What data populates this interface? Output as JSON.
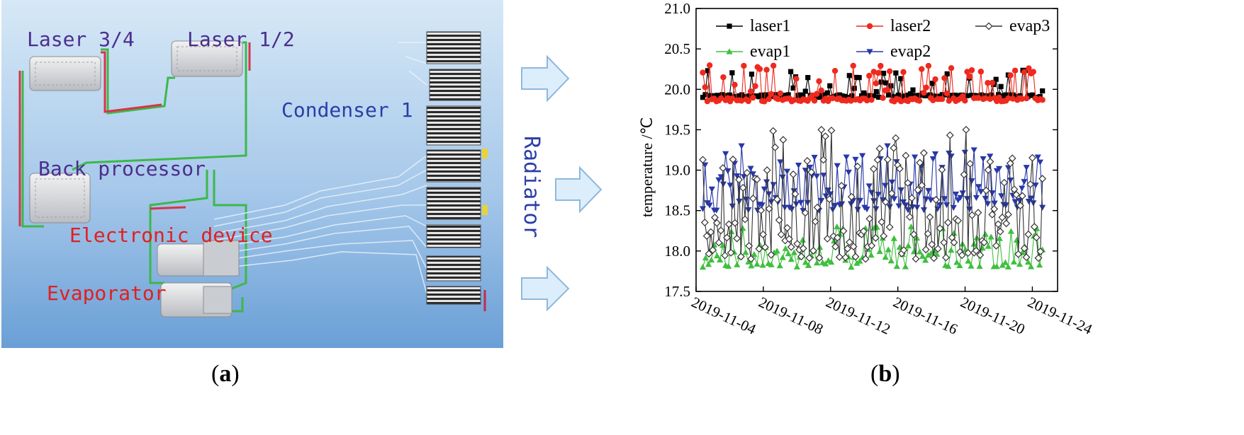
{
  "panel_a": {
    "caption_letter": "a",
    "labels": {
      "laser_34": "Laser 3/4",
      "laser_12": "Laser 1/2",
      "condenser": "Condenser 1",
      "back_processor": "Back processor",
      "electronic_device": "Electronic device",
      "evaporator": "Evaporator",
      "radiator": "Radiator"
    },
    "colors": {
      "background_top": "#cfe3f4",
      "background_bottom": "#6c9fd4",
      "label_purple": "#4b2e8e",
      "label_blue": "#2a3fa8",
      "label_red": "#e02020",
      "pipe_red": "#d9334a",
      "pipe_green": "#3cb84a",
      "arrow_fill": "#dceefb",
      "arrow_stroke": "#8fb8dc"
    }
  },
  "panel_b": {
    "caption_letter": "b"
  },
  "chart_data": {
    "type": "line",
    "title": "",
    "xlabel": "",
    "ylabel": "temperature /℃",
    "ylim": [
      17.5,
      21.0
    ],
    "yticks": [
      "17.5",
      "18.0",
      "18.5",
      "19.0",
      "19.5",
      "20.0",
      "20.5",
      "21.0"
    ],
    "xlim_days": [
      0,
      21.5
    ],
    "xticks": [
      {
        "label": "2019-11-04",
        "day": 0
      },
      {
        "label": "2019-11-08",
        "day": 4
      },
      {
        "label": "2019-11-12",
        "day": 8
      },
      {
        "label": "2019-11-16",
        "day": 12
      },
      {
        "label": "2019-11-20",
        "day": 16
      },
      {
        "label": "2019-11-24",
        "day": 20
      }
    ],
    "legend_position": "top",
    "series": [
      {
        "name": "laser1",
        "color": "#000000",
        "marker": "square",
        "band": [
          19.9,
          20.25
        ],
        "x_range": [
          0.4,
          20.6
        ],
        "points": 140
      },
      {
        "name": "laser2",
        "color": "#ee2a1e",
        "marker": "circle",
        "band": [
          19.85,
          20.3
        ],
        "x_range": [
          0.4,
          20.6
        ],
        "points": 150
      },
      {
        "name": "evap3",
        "color": "#333333",
        "marker": "open-diamond",
        "band": [
          17.9,
          19.5
        ],
        "x_range": [
          0.4,
          20.6
        ],
        "points": 170
      },
      {
        "name": "evap1",
        "color": "#3fbf3f",
        "marker": "triangle-up",
        "band": [
          17.8,
          18.3
        ],
        "x_range": [
          0.4,
          20.6
        ],
        "points": 120
      },
      {
        "name": "evap2",
        "color": "#2838a8",
        "marker": "triangle-down",
        "band": [
          18.5,
          19.3
        ],
        "x_range": [
          0.4,
          20.6
        ],
        "points": 150
      }
    ]
  }
}
